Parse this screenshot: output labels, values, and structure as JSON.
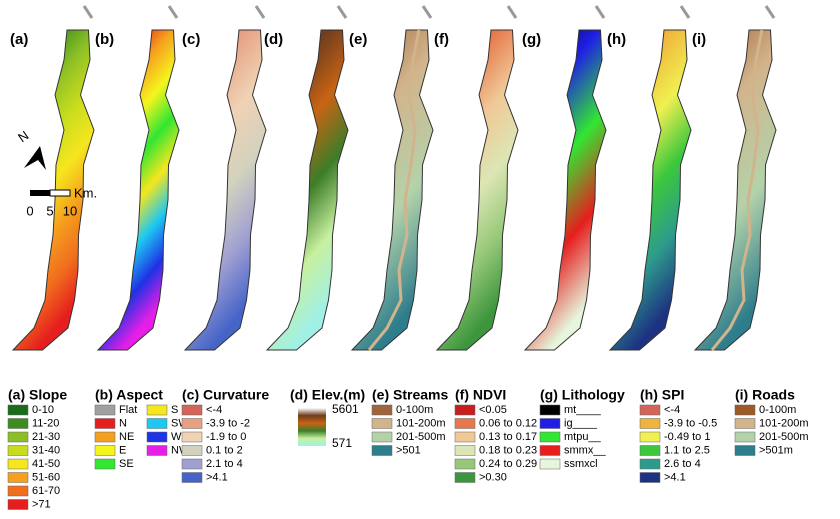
{
  "panels": [
    "(a)",
    "(b)",
    "(c)",
    "(d)",
    "(e)",
    "(f)",
    "(g)",
    "(h)",
    "(i)"
  ],
  "north_arrow": "N",
  "scale_bar": {
    "unit": "Km.",
    "ticks": [
      "0",
      "5",
      "10"
    ]
  },
  "legends": [
    {
      "title": "(a) Slope",
      "items": [
        {
          "label": "0-10",
          "color": "#1a6b1a"
        },
        {
          "label": "11-20",
          "color": "#3c8c1e"
        },
        {
          "label": "21-30",
          "color": "#8cbf26"
        },
        {
          "label": "31-40",
          "color": "#c8dc1e"
        },
        {
          "label": "41-50",
          "color": "#f5e61e"
        },
        {
          "label": "51-60",
          "color": "#f5a01e"
        },
        {
          "label": "61-70",
          "color": "#f06e1e"
        },
        {
          "label": ">71",
          "color": "#e61e1e"
        }
      ]
    },
    {
      "title": "(b) Aspect",
      "items": [
        {
          "label": "Flat",
          "color": "#a0a0a0"
        },
        {
          "label": "N",
          "color": "#e61e1e"
        },
        {
          "label": "NE",
          "color": "#f5a01e"
        },
        {
          "label": "E",
          "color": "#f5f51e"
        },
        {
          "label": "SE",
          "color": "#32e632"
        },
        {
          "label": "S",
          "color": "#f5e61e"
        },
        {
          "label": "SW",
          "color": "#1ec8f0"
        },
        {
          "label": "W",
          "color": "#1e32e6"
        },
        {
          "label": "NW",
          "color": "#e61ee6"
        }
      ]
    },
    {
      "title": "(c) Curvature",
      "items": [
        {
          "label": "<-4",
          "color": "#d2645a"
        },
        {
          "label": "-3.9 to -2",
          "color": "#e6a082"
        },
        {
          "label": "-1.9 to 0",
          "color": "#f0d2b4"
        },
        {
          "label": "0.1 to 2",
          "color": "#d2d2be"
        },
        {
          "label": "2.1 to 4",
          "color": "#a0a0d2"
        },
        {
          "label": ">4.1",
          "color": "#4664c8"
        }
      ]
    },
    {
      "title": "(d) Elev.(m)",
      "gradient": [
        "#ffffff",
        "#6e3c1e",
        "#c86414",
        "#3c7d28",
        "#c8f0a0",
        "#a0f0e6"
      ],
      "labels": [
        "5601",
        "571"
      ]
    },
    {
      "title": "(e) Streams",
      "items": [
        {
          "label": "0-100m",
          "color": "#a0643c"
        },
        {
          "label": "101-200m",
          "color": "#d2b48c"
        },
        {
          "label": "201-500m",
          "color": "#b4d2aa"
        },
        {
          "label": ">501",
          "color": "#2d7d8c"
        }
      ]
    },
    {
      "title": "(f) NDVI",
      "items": [
        {
          "label": "<0.05",
          "color": "#c81e1e"
        },
        {
          "label": "0.06 to 0.12",
          "color": "#e6784b"
        },
        {
          "label": "0.13 to 0.17",
          "color": "#f0c896"
        },
        {
          "label": "0.18 to 0.23",
          "color": "#dce6b4"
        },
        {
          "label": "0.24 to 0.29",
          "color": "#96c878"
        },
        {
          "label": ">0.30",
          "color": "#3c963c"
        }
      ]
    },
    {
      "title": "(g) Lithology",
      "items": [
        {
          "label": "mt____",
          "color": "#000000"
        },
        {
          "label": "ig____",
          "color": "#1e1ee6"
        },
        {
          "label": "mtpu__",
          "color": "#32e632"
        },
        {
          "label": "smmx__",
          "color": "#e61e1e"
        },
        {
          "label": "ssmxcl",
          "color": "#e6f5dc"
        }
      ]
    },
    {
      "title": "(h) SPI",
      "items": [
        {
          "label": "<-4",
          "color": "#d2645a"
        },
        {
          "label": "-3.9 to -0.5",
          "color": "#f0b43c"
        },
        {
          "label": "-0.49 to 1",
          "color": "#f0f050"
        },
        {
          "label": "1.1 to 2.5",
          "color": "#3cc83c"
        },
        {
          "label": "2.6 to 4",
          "color": "#2d9b8c"
        },
        {
          "label": ">4.1",
          "color": "#1e3282"
        }
      ]
    },
    {
      "title": "(i) Roads",
      "items": [
        {
          "label": "0-100m",
          "color": "#9b5a28"
        },
        {
          "label": "101-200m",
          "color": "#d2b48c"
        },
        {
          "label": "201-500m",
          "color": "#b4d2aa"
        },
        {
          "label": ">501m",
          "color": "#2d7d8c"
        }
      ]
    }
  ]
}
